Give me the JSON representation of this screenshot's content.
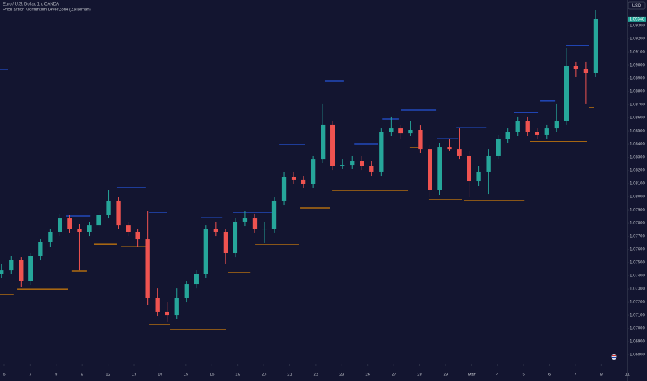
{
  "chart_data": {
    "type": "candlestick",
    "title": "Euro / U.S. Dollar, 1h, OANDA",
    "subtitle": "Price action Momentum Level/Zone (Zeiierman)",
    "currency": "USD",
    "last_price_label": "1.09348",
    "up_color": "#26a69a",
    "down_color": "#ef5350",
    "xlim": [
      -0.16,
      23.98
    ],
    "xticks": [
      {
        "value": 0,
        "label": "6"
      },
      {
        "value": 1,
        "label": "7"
      },
      {
        "value": 2,
        "label": "8"
      },
      {
        "value": 3,
        "label": "9"
      },
      {
        "value": 4,
        "label": "12"
      },
      {
        "value": 5,
        "label": "13"
      },
      {
        "value": 6,
        "label": "14"
      },
      {
        "value": 7,
        "label": "15"
      },
      {
        "value": 8,
        "label": "16"
      },
      {
        "value": 9,
        "label": "19"
      },
      {
        "value": 10,
        "label": "20"
      },
      {
        "value": 11,
        "label": "21"
      },
      {
        "value": 12,
        "label": "22"
      },
      {
        "value": 13,
        "label": "23"
      },
      {
        "value": 14,
        "label": "26"
      },
      {
        "value": 15,
        "label": "27"
      },
      {
        "value": 16,
        "label": "28"
      },
      {
        "value": 17,
        "label": "29"
      },
      {
        "value": 18,
        "label": "Mar"
      },
      {
        "value": 19,
        "label": "4"
      },
      {
        "value": 20,
        "label": "5"
      },
      {
        "value": 21,
        "label": "6"
      },
      {
        "value": 22,
        "label": "7"
      },
      {
        "value": 23,
        "label": "8"
      },
      {
        "value": 24,
        "label": "11"
      }
    ],
    "ylim": [
      1.06732,
      1.09495
    ],
    "yticks": [
      {
        "value": 1.068,
        "label": "1.06800"
      },
      {
        "value": 1.069,
        "label": "1.06900"
      },
      {
        "value": 1.07,
        "label": "1.07000"
      },
      {
        "value": 1.071,
        "label": "1.07100"
      },
      {
        "value": 1.072,
        "label": "1.07200"
      },
      {
        "value": 1.073,
        "label": "1.07300"
      },
      {
        "value": 1.074,
        "label": "1.07400"
      },
      {
        "value": 1.075,
        "label": "1.07500"
      },
      {
        "value": 1.076,
        "label": "1.07600"
      },
      {
        "value": 1.077,
        "label": "1.07700"
      },
      {
        "value": 1.078,
        "label": "1.07800"
      },
      {
        "value": 1.079,
        "label": "1.07900"
      },
      {
        "value": 1.08,
        "label": "1.08000"
      },
      {
        "value": 1.081,
        "label": "1.08100"
      },
      {
        "value": 1.082,
        "label": "1.08200"
      },
      {
        "value": 1.083,
        "label": "1.08300"
      },
      {
        "value": 1.084,
        "label": "1.08400"
      },
      {
        "value": 1.085,
        "label": "1.08500"
      },
      {
        "value": 1.086,
        "label": "1.08600"
      },
      {
        "value": 1.087,
        "label": "1.08700"
      },
      {
        "value": 1.088,
        "label": "1.08800"
      },
      {
        "value": 1.089,
        "label": "1.08900"
      },
      {
        "value": 1.09,
        "label": "1.09000"
      },
      {
        "value": 1.091,
        "label": "1.09100"
      },
      {
        "value": 1.092,
        "label": "1.09200"
      },
      {
        "value": 1.093,
        "label": "1.09300"
      }
    ],
    "grid": false,
    "x": [
      -0.1,
      0.275,
      0.65,
      1.025,
      1.4,
      1.775,
      2.15,
      2.525,
      2.9,
      3.275,
      3.65,
      4.025,
      4.4,
      4.775,
      5.15,
      5.525,
      5.9,
      6.275,
      6.65,
      7.025,
      7.4,
      7.775,
      8.15,
      8.525,
      8.9,
      9.275,
      9.65,
      10.025,
      10.4,
      10.775,
      11.15,
      11.525,
      11.9,
      12.275,
      12.65,
      13.025,
      13.4,
      13.775,
      14.15,
      14.525,
      14.9,
      15.275,
      15.65,
      16.025,
      16.4,
      16.775,
      17.15,
      17.525,
      17.9,
      18.275,
      18.65,
      19.025,
      19.4,
      19.775,
      20.15,
      20.525,
      20.9,
      21.275,
      21.65,
      22.025,
      22.4,
      22.775
    ],
    "open": [
      1.07416,
      1.07442,
      1.07521,
      1.07363,
      1.07548,
      1.07653,
      1.07732,
      1.07837,
      1.07758,
      1.07732,
      1.07784,
      1.07863,
      1.07969,
      1.07784,
      1.07732,
      1.07679,
      1.07232,
      1.07127,
      1.071,
      1.07232,
      1.07337,
      1.07416,
      1.07758,
      1.07732,
      1.07574,
      1.07811,
      1.07837,
      1.07758,
      1.07758,
      1.07969,
      1.08153,
      1.08127,
      1.081,
      1.08284,
      1.08548,
      1.08232,
      1.08242,
      1.08274,
      1.08232,
      1.0819,
      1.08495,
      1.08521,
      1.08484,
      1.08506,
      1.08363,
      1.08048,
      1.08379,
      1.08363,
      1.08311,
      1.08116,
      1.0819,
      1.08311,
      1.08442,
      1.08495,
      1.08574,
      1.08495,
      1.08469,
      1.08521,
      1.08574,
      1.08995,
      1.08969,
      1.08942
    ],
    "high": [
      1.0749,
      1.07548,
      1.07542,
      1.07574,
      1.07679,
      1.07758,
      1.07869,
      1.07863,
      1.0779,
      1.07811,
      1.0789,
      1.08048,
      1.07995,
      1.07811,
      1.07758,
      1.0789,
      1.07305,
      1.072,
      1.07305,
      1.07363,
      1.07442,
      1.07784,
      1.07811,
      1.07758,
      1.07837,
      1.0789,
      1.07869,
      1.07811,
      1.07995,
      1.08185,
      1.0819,
      1.08158,
      1.08311,
      1.08706,
      1.08574,
      1.08284,
      1.08311,
      1.08311,
      1.08274,
      1.08521,
      1.08606,
      1.08548,
      1.08574,
      1.08542,
      1.08395,
      1.08411,
      1.08442,
      1.08521,
      1.08348,
      1.08232,
      1.08363,
      1.08469,
      1.08521,
      1.08606,
      1.08606,
      1.08521,
      1.08548,
      1.08706,
      1.09127,
      1.09027,
      1.09027,
      1.09416
    ],
    "low": [
      1.07384,
      1.07411,
      1.07311,
      1.07332,
      1.07516,
      1.07621,
      1.077,
      1.07727,
      1.07442,
      1.077,
      1.07753,
      1.07837,
      1.07753,
      1.077,
      1.07621,
      1.07179,
      1.07095,
      1.07048,
      1.07069,
      1.072,
      1.07305,
      1.07384,
      1.077,
      1.0749,
      1.07542,
      1.07779,
      1.07727,
      1.07648,
      1.07727,
      1.07937,
      1.08095,
      1.08069,
      1.08069,
      1.08253,
      1.082,
      1.08211,
      1.08211,
      1.082,
      1.08158,
      1.08158,
      1.08463,
      1.08442,
      1.08463,
      1.08332,
      1.07995,
      1.08016,
      1.08348,
      1.08284,
      1.07995,
      1.08084,
      1.08021,
      1.08284,
      1.08411,
      1.08463,
      1.08463,
      1.08437,
      1.08442,
      1.08495,
      1.08548,
      1.08911,
      1.08706,
      1.08911
    ],
    "close": [
      1.07442,
      1.07521,
      1.07363,
      1.07548,
      1.07653,
      1.07732,
      1.07837,
      1.07758,
      1.07732,
      1.07784,
      1.07863,
      1.07969,
      1.07784,
      1.07732,
      1.07679,
      1.07232,
      1.07127,
      1.071,
      1.07232,
      1.07337,
      1.07416,
      1.07758,
      1.07732,
      1.07574,
      1.07811,
      1.07837,
      1.07758,
      1.07758,
      1.07969,
      1.08153,
      1.08127,
      1.081,
      1.08284,
      1.08548,
      1.08232,
      1.08242,
      1.08274,
      1.08232,
      1.0819,
      1.08495,
      1.08521,
      1.08484,
      1.08506,
      1.08363,
      1.08048,
      1.08379,
      1.08363,
      1.08311,
      1.08116,
      1.0819,
      1.08311,
      1.08442,
      1.08495,
      1.08574,
      1.08495,
      1.08469,
      1.08521,
      1.08574,
      1.08995,
      1.08969,
      1.08942,
      1.09348
    ],
    "resistance_color": "#2962ff",
    "support_color": "#ff9800",
    "resistance_levels": [
      {
        "start": -0.16,
        "end": 0.16,
        "value": 1.08969
      },
      {
        "start": 2.38,
        "end": 3.32,
        "value": 1.07853
      },
      {
        "start": 4.33,
        "end": 5.45,
        "value": 1.08069
      },
      {
        "start": 5.59,
        "end": 6.26,
        "value": 1.07879
      },
      {
        "start": 7.59,
        "end": 8.4,
        "value": 1.07842
      },
      {
        "start": 8.8,
        "end": 10.4,
        "value": 1.07879
      },
      {
        "start": 10.59,
        "end": 11.6,
        "value": 1.08395
      },
      {
        "start": 12.35,
        "end": 13.07,
        "value": 1.08879
      },
      {
        "start": 13.48,
        "end": 14.41,
        "value": 1.084
      },
      {
        "start": 14.55,
        "end": 15.21,
        "value": 1.0859
      },
      {
        "start": 15.29,
        "end": 16.63,
        "value": 1.08658
      },
      {
        "start": 16.68,
        "end": 17.49,
        "value": 1.08442
      },
      {
        "start": 17.41,
        "end": 18.56,
        "value": 1.08527
      },
      {
        "start": 19.63,
        "end": 20.56,
        "value": 1.08642
      },
      {
        "start": 20.64,
        "end": 21.23,
        "value": 1.08727
      },
      {
        "start": 21.63,
        "end": 22.51,
        "value": 1.09148
      }
    ],
    "support_levels": [
      {
        "start": -0.16,
        "end": 0.37,
        "value": 1.07258
      },
      {
        "start": 0.51,
        "end": 2.46,
        "value": 1.073
      },
      {
        "start": 2.59,
        "end": 3.18,
        "value": 1.07437
      },
      {
        "start": 3.45,
        "end": 4.33,
        "value": 1.07642
      },
      {
        "start": 4.52,
        "end": 5.59,
        "value": 1.07621
      },
      {
        "start": 5.59,
        "end": 6.39,
        "value": 1.07032
      },
      {
        "start": 6.39,
        "end": 8.53,
        "value": 1.0699
      },
      {
        "start": 8.61,
        "end": 9.47,
        "value": 1.07427
      },
      {
        "start": 9.68,
        "end": 11.34,
        "value": 1.07637
      },
      {
        "start": 11.39,
        "end": 12.54,
        "value": 1.07916
      },
      {
        "start": 12.62,
        "end": 15.56,
        "value": 1.08048
      },
      {
        "start": 15.61,
        "end": 16.02,
        "value": 1.08374
      },
      {
        "start": 16.36,
        "end": 17.62,
        "value": 1.07979
      },
      {
        "start": 17.7,
        "end": 20.03,
        "value": 1.07974
      },
      {
        "start": 20.24,
        "end": 22.43,
        "value": 1.08421
      },
      {
        "start": 22.51,
        "end": 22.7,
        "value": 1.08679
      }
    ]
  }
}
